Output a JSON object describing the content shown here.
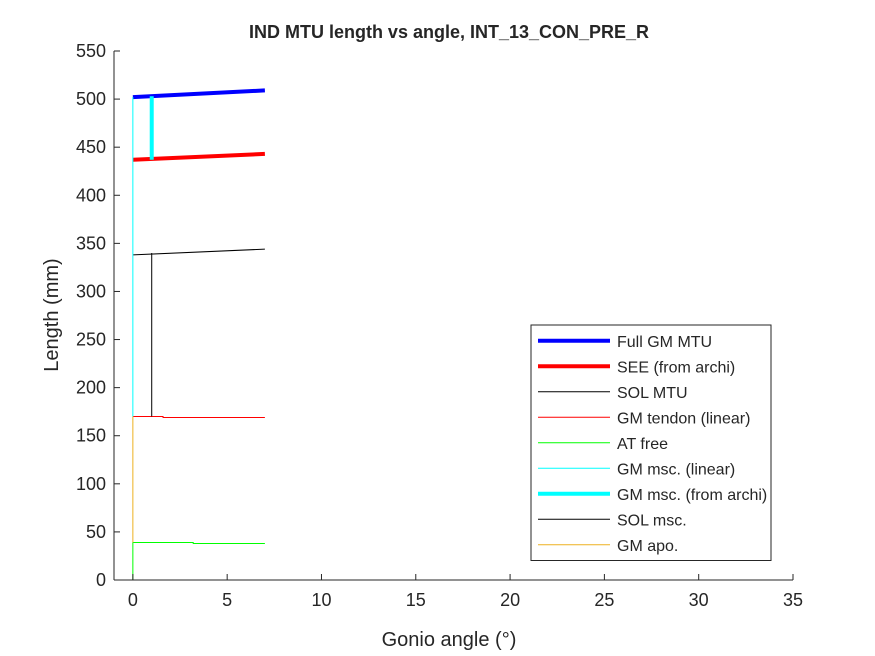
{
  "chart_data": {
    "type": "line",
    "title": "IND MTU length vs angle, INT_13_CON_PRE_R",
    "xlabel": "Gonio angle (°)",
    "ylabel": "Length (mm)",
    "xlim": [
      -1,
      35
    ],
    "ylim": [
      0,
      550
    ],
    "xticks": [
      0,
      5,
      10,
      15,
      20,
      25,
      30,
      35
    ],
    "yticks": [
      0,
      50,
      100,
      150,
      200,
      250,
      300,
      350,
      400,
      450,
      500,
      550
    ],
    "grid": false,
    "legend_position": "bottom-right",
    "series": [
      {
        "name": "Full GM MTU",
        "color": "#0000ff",
        "width": 4,
        "x": [
          0,
          7
        ],
        "y": [
          502,
          509
        ]
      },
      {
        "name": "SEE (from archi)",
        "color": "#ff0000",
        "width": 4,
        "x": [
          0,
          7
        ],
        "y": [
          437,
          443
        ]
      },
      {
        "name": "SOL MTU",
        "color": "#000000",
        "width": 1,
        "x": [
          0,
          7
        ],
        "y": [
          338,
          344
        ]
      },
      {
        "name": "GM tendon (linear)",
        "color": "#ff0000",
        "width": 1,
        "x": [
          0,
          1.6,
          1.6,
          7
        ],
        "y": [
          170,
          170,
          169,
          169
        ]
      },
      {
        "name": "AT free",
        "color": "#00ff00",
        "width": 1,
        "x": [
          0,
          0,
          3.2,
          3.2,
          7
        ],
        "y": [
          0,
          39,
          39,
          38,
          38
        ]
      },
      {
        "name": "GM msc. (linear)",
        "color": "#00ffff",
        "width": 1,
        "x": [
          0,
          0
        ],
        "y": [
          170,
          502
        ]
      },
      {
        "name": "GM msc. (from archi)",
        "color": "#00ffff",
        "width": 4,
        "x": [
          1,
          1
        ],
        "y": [
          437,
          503
        ]
      },
      {
        "name": "SOL msc.",
        "color": "#000000",
        "width": 1,
        "x": [
          1,
          1
        ],
        "y": [
          170,
          340
        ]
      },
      {
        "name": "GM apo.",
        "color": "#edb120",
        "width": 1,
        "x": [
          0,
          0
        ],
        "y": [
          39,
          170
        ]
      }
    ]
  }
}
